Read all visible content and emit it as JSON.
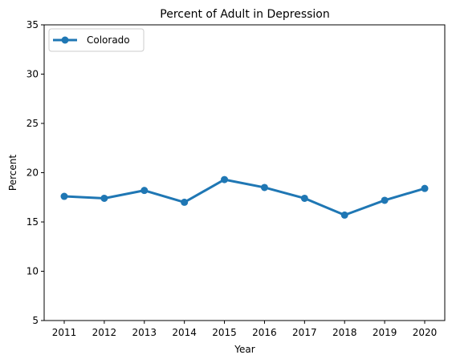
{
  "chart_data": {
    "type": "line",
    "title": "Percent of Adult in Depression",
    "xlabel": "Year",
    "ylabel": "Percent",
    "x": [
      "2011",
      "2012",
      "2013",
      "2014",
      "2015",
      "2016",
      "2017",
      "2018",
      "2019",
      "2020"
    ],
    "ylim": [
      5,
      35
    ],
    "yticks": [
      5,
      10,
      15,
      20,
      25,
      30,
      35
    ],
    "grid": false,
    "legend_position": "upper-left",
    "series": [
      {
        "name": "Colorado",
        "color": "#1f77b4",
        "marker": "circle",
        "values": [
          17.6,
          17.4,
          18.2,
          17.0,
          19.3,
          18.5,
          17.4,
          15.7,
          17.2,
          18.4
        ]
      }
    ]
  }
}
